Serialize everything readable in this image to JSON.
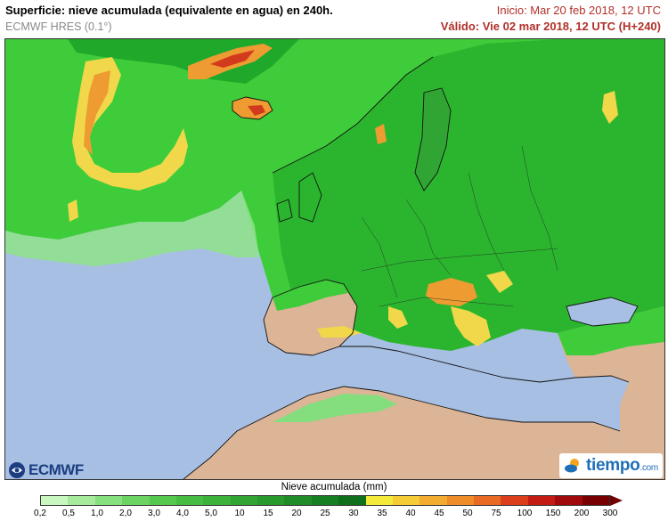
{
  "header": {
    "title": "Superficie: nieve acumulada (equivalente en agua) en 240h.",
    "model": "ECMWF HRES (0.1°)",
    "init": "Inicio: Mar 20 feb 2018, 12 UTC",
    "valid": "Válido: Vie 02 mar 2018, 12 UTC (H+240)"
  },
  "logos": {
    "ecmwf": "ECMWF",
    "tiempo": "tiempo",
    "tiempo_suffix": ".com"
  },
  "legend": {
    "title": "Nieve acumulada (mm)",
    "ticks": [
      "0,2",
      "0,5",
      "1,0",
      "2,0",
      "3,0",
      "4,0",
      "5,0",
      "10",
      "15",
      "20",
      "25",
      "30",
      "35",
      "40",
      "45",
      "50",
      "75",
      "100",
      "150",
      "200",
      "300"
    ],
    "colors": [
      "#c8f7c0",
      "#a6eb9c",
      "#86e07e",
      "#6bd463",
      "#55c94e",
      "#46bd42",
      "#3bb23a",
      "#31a533",
      "#28992d",
      "#1f8c27",
      "#167f21",
      "#0f6f1c",
      "#f4ea3a",
      "#f5cc35",
      "#f2ac2f",
      "#ef8c28",
      "#e96a22",
      "#dc3e1c",
      "#c41c15",
      "#a10a0d",
      "#780000"
    ]
  },
  "colors": {
    "sea": "#a7bfe3",
    "land": "#dcb496",
    "snow_light": "#7be27a",
    "snow_mid": "#3fcc3a",
    "snow_dark": "#1fa92a",
    "snow_yellow": "#f1d84a",
    "snow_orange": "#ee9b32",
    "snow_red": "#d23a1d"
  }
}
